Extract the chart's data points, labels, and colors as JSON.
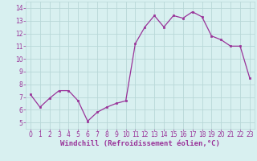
{
  "x": [
    0,
    1,
    2,
    3,
    4,
    5,
    6,
    7,
    8,
    9,
    10,
    11,
    12,
    13,
    14,
    15,
    16,
    17,
    18,
    19,
    20,
    21,
    22,
    23
  ],
  "y": [
    7.2,
    6.2,
    6.9,
    7.5,
    7.5,
    6.7,
    5.1,
    5.8,
    6.2,
    6.5,
    6.7,
    11.2,
    12.5,
    13.4,
    12.5,
    13.4,
    13.2,
    13.7,
    13.3,
    11.8,
    11.5,
    11.0,
    11.0,
    8.5
  ],
  "line_color": "#993399",
  "marker": "s",
  "markersize": 1.8,
  "linewidth": 0.9,
  "xlabel": "Windchill (Refroidissement éolien,°C)",
  "xlim": [
    -0.5,
    23.5
  ],
  "ylim": [
    4.5,
    14.5
  ],
  "xticks": [
    0,
    1,
    2,
    3,
    4,
    5,
    6,
    7,
    8,
    9,
    10,
    11,
    12,
    13,
    14,
    15,
    16,
    17,
    18,
    19,
    20,
    21,
    22,
    23
  ],
  "yticks": [
    5,
    6,
    7,
    8,
    9,
    10,
    11,
    12,
    13,
    14
  ],
  "bg_color": "#d8f0f0",
  "grid_color": "#b8d8d8",
  "xlabel_fontsize": 6.5,
  "tick_fontsize": 5.5,
  "line_color_hex": "#993399"
}
